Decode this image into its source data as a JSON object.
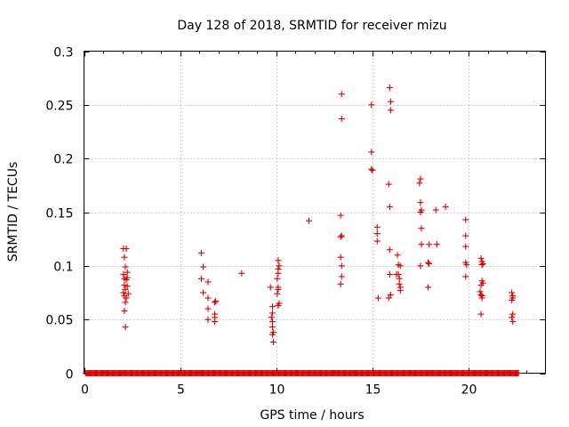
{
  "chart_data": {
    "type": "scatter",
    "title": "Day 128 of 2018, SRMTID for receiver mizu",
    "xlabel": "GPS time / hours",
    "ylabel": "SRMTID / TECUs",
    "xlim": [
      0,
      24
    ],
    "ylim": [
      0,
      0.3
    ],
    "xticks": [
      0,
      5,
      10,
      15,
      20
    ],
    "xtick_labels": [
      "0",
      "5",
      "10",
      "15",
      "20"
    ],
    "yticks": [
      0,
      0.05,
      0.1,
      0.15,
      0.2,
      0.25,
      0.3
    ],
    "ytick_labels": [
      "0",
      "0.05",
      "0.1",
      "0.15",
      "0.2",
      "0.25",
      "0.3"
    ],
    "grid": true,
    "marker": "+",
    "color": "#dd0000",
    "series": [
      {
        "name": "SRMTID",
        "points": [
          [
            2.05,
            0.116
          ],
          [
            2.1,
            0.108
          ],
          [
            2.15,
            0.099
          ],
          [
            2.2,
            0.116
          ],
          [
            2.05,
            0.092
          ],
          [
            2.1,
            0.088
          ],
          [
            2.2,
            0.087
          ],
          [
            2.25,
            0.089
          ],
          [
            2.1,
            0.082
          ],
          [
            2.15,
            0.078
          ],
          [
            2.25,
            0.081
          ],
          [
            2.05,
            0.075
          ],
          [
            2.1,
            0.072
          ],
          [
            2.2,
            0.07
          ],
          [
            2.3,
            0.074
          ],
          [
            2.15,
            0.066
          ],
          [
            2.1,
            0.058
          ],
          [
            2.15,
            0.043
          ],
          [
            2.25,
            0.094
          ],
          [
            6.1,
            0.112
          ],
          [
            6.2,
            0.099
          ],
          [
            6.1,
            0.088
          ],
          [
            6.45,
            0.085
          ],
          [
            6.2,
            0.075
          ],
          [
            6.45,
            0.07
          ],
          [
            6.45,
            0.06
          ],
          [
            6.45,
            0.05
          ],
          [
            6.8,
            0.066
          ],
          [
            6.85,
            0.067
          ],
          [
            6.8,
            0.055
          ],
          [
            6.8,
            0.052
          ],
          [
            6.8,
            0.048
          ],
          [
            8.2,
            0.093
          ],
          [
            9.7,
            0.08
          ],
          [
            9.8,
            0.062
          ],
          [
            9.8,
            0.056
          ],
          [
            9.75,
            0.052
          ],
          [
            9.8,
            0.048
          ],
          [
            9.8,
            0.043
          ],
          [
            9.85,
            0.038
          ],
          [
            9.8,
            0.036
          ],
          [
            9.85,
            0.029
          ],
          [
            10.1,
            0.105
          ],
          [
            10.15,
            0.1
          ],
          [
            10.1,
            0.097
          ],
          [
            10.1,
            0.093
          ],
          [
            10.05,
            0.088
          ],
          [
            10.1,
            0.08
          ],
          [
            10.1,
            0.078
          ],
          [
            10.05,
            0.074
          ],
          [
            10.15,
            0.065
          ],
          [
            10.1,
            0.063
          ],
          [
            11.7,
            0.142
          ],
          [
            13.4,
            0.26
          ],
          [
            13.4,
            0.237
          ],
          [
            13.35,
            0.147
          ],
          [
            13.4,
            0.128
          ],
          [
            13.35,
            0.127
          ],
          [
            13.35,
            0.108
          ],
          [
            13.4,
            0.1
          ],
          [
            13.4,
            0.09
          ],
          [
            13.35,
            0.083
          ],
          [
            14.95,
            0.25
          ],
          [
            14.95,
            0.206
          ],
          [
            14.95,
            0.19
          ],
          [
            15.0,
            0.189
          ],
          [
            15.25,
            0.136
          ],
          [
            15.25,
            0.13
          ],
          [
            15.25,
            0.123
          ],
          [
            15.3,
            0.07
          ],
          [
            15.9,
            0.266
          ],
          [
            15.95,
            0.253
          ],
          [
            15.95,
            0.245
          ],
          [
            15.85,
            0.176
          ],
          [
            15.9,
            0.155
          ],
          [
            15.9,
            0.115
          ],
          [
            15.9,
            0.092
          ],
          [
            15.95,
            0.073
          ],
          [
            15.85,
            0.07
          ],
          [
            16.3,
            0.11
          ],
          [
            16.35,
            0.101
          ],
          [
            16.45,
            0.1
          ],
          [
            16.35,
            0.092
          ],
          [
            16.4,
            0.088
          ],
          [
            16.4,
            0.083
          ],
          [
            16.45,
            0.08
          ],
          [
            16.45,
            0.077
          ],
          [
            16.25,
            0.092
          ],
          [
            17.5,
            0.181
          ],
          [
            17.45,
            0.177
          ],
          [
            17.5,
            0.159
          ],
          [
            17.55,
            0.152
          ],
          [
            17.5,
            0.15
          ],
          [
            17.55,
            0.135
          ],
          [
            17.55,
            0.12
          ],
          [
            17.5,
            0.1
          ],
          [
            17.95,
            0.12
          ],
          [
            17.9,
            0.103
          ],
          [
            17.95,
            0.102
          ],
          [
            17.9,
            0.08
          ],
          [
            18.35,
            0.12
          ],
          [
            18.3,
            0.152
          ],
          [
            18.8,
            0.155
          ],
          [
            19.85,
            0.143
          ],
          [
            19.85,
            0.128
          ],
          [
            19.85,
            0.118
          ],
          [
            19.85,
            0.103
          ],
          [
            19.9,
            0.101
          ],
          [
            19.85,
            0.09
          ],
          [
            20.65,
            0.107
          ],
          [
            20.7,
            0.104
          ],
          [
            20.7,
            0.101
          ],
          [
            20.75,
            0.102
          ],
          [
            20.7,
            0.086
          ],
          [
            20.75,
            0.084
          ],
          [
            20.65,
            0.082
          ],
          [
            20.6,
            0.076
          ],
          [
            20.65,
            0.073
          ],
          [
            20.7,
            0.072
          ],
          [
            20.7,
            0.07
          ],
          [
            20.65,
            0.055
          ],
          [
            22.25,
            0.075
          ],
          [
            22.3,
            0.072
          ],
          [
            22.3,
            0.07
          ],
          [
            22.25,
            0.068
          ],
          [
            22.3,
            0.055
          ],
          [
            22.25,
            0.052
          ],
          [
            22.3,
            0.048
          ]
        ]
      },
      {
        "name": "zero baseline",
        "y": 0,
        "x_start": 0.1,
        "x_end": 22.6,
        "x_step": 0.05
      }
    ]
  }
}
